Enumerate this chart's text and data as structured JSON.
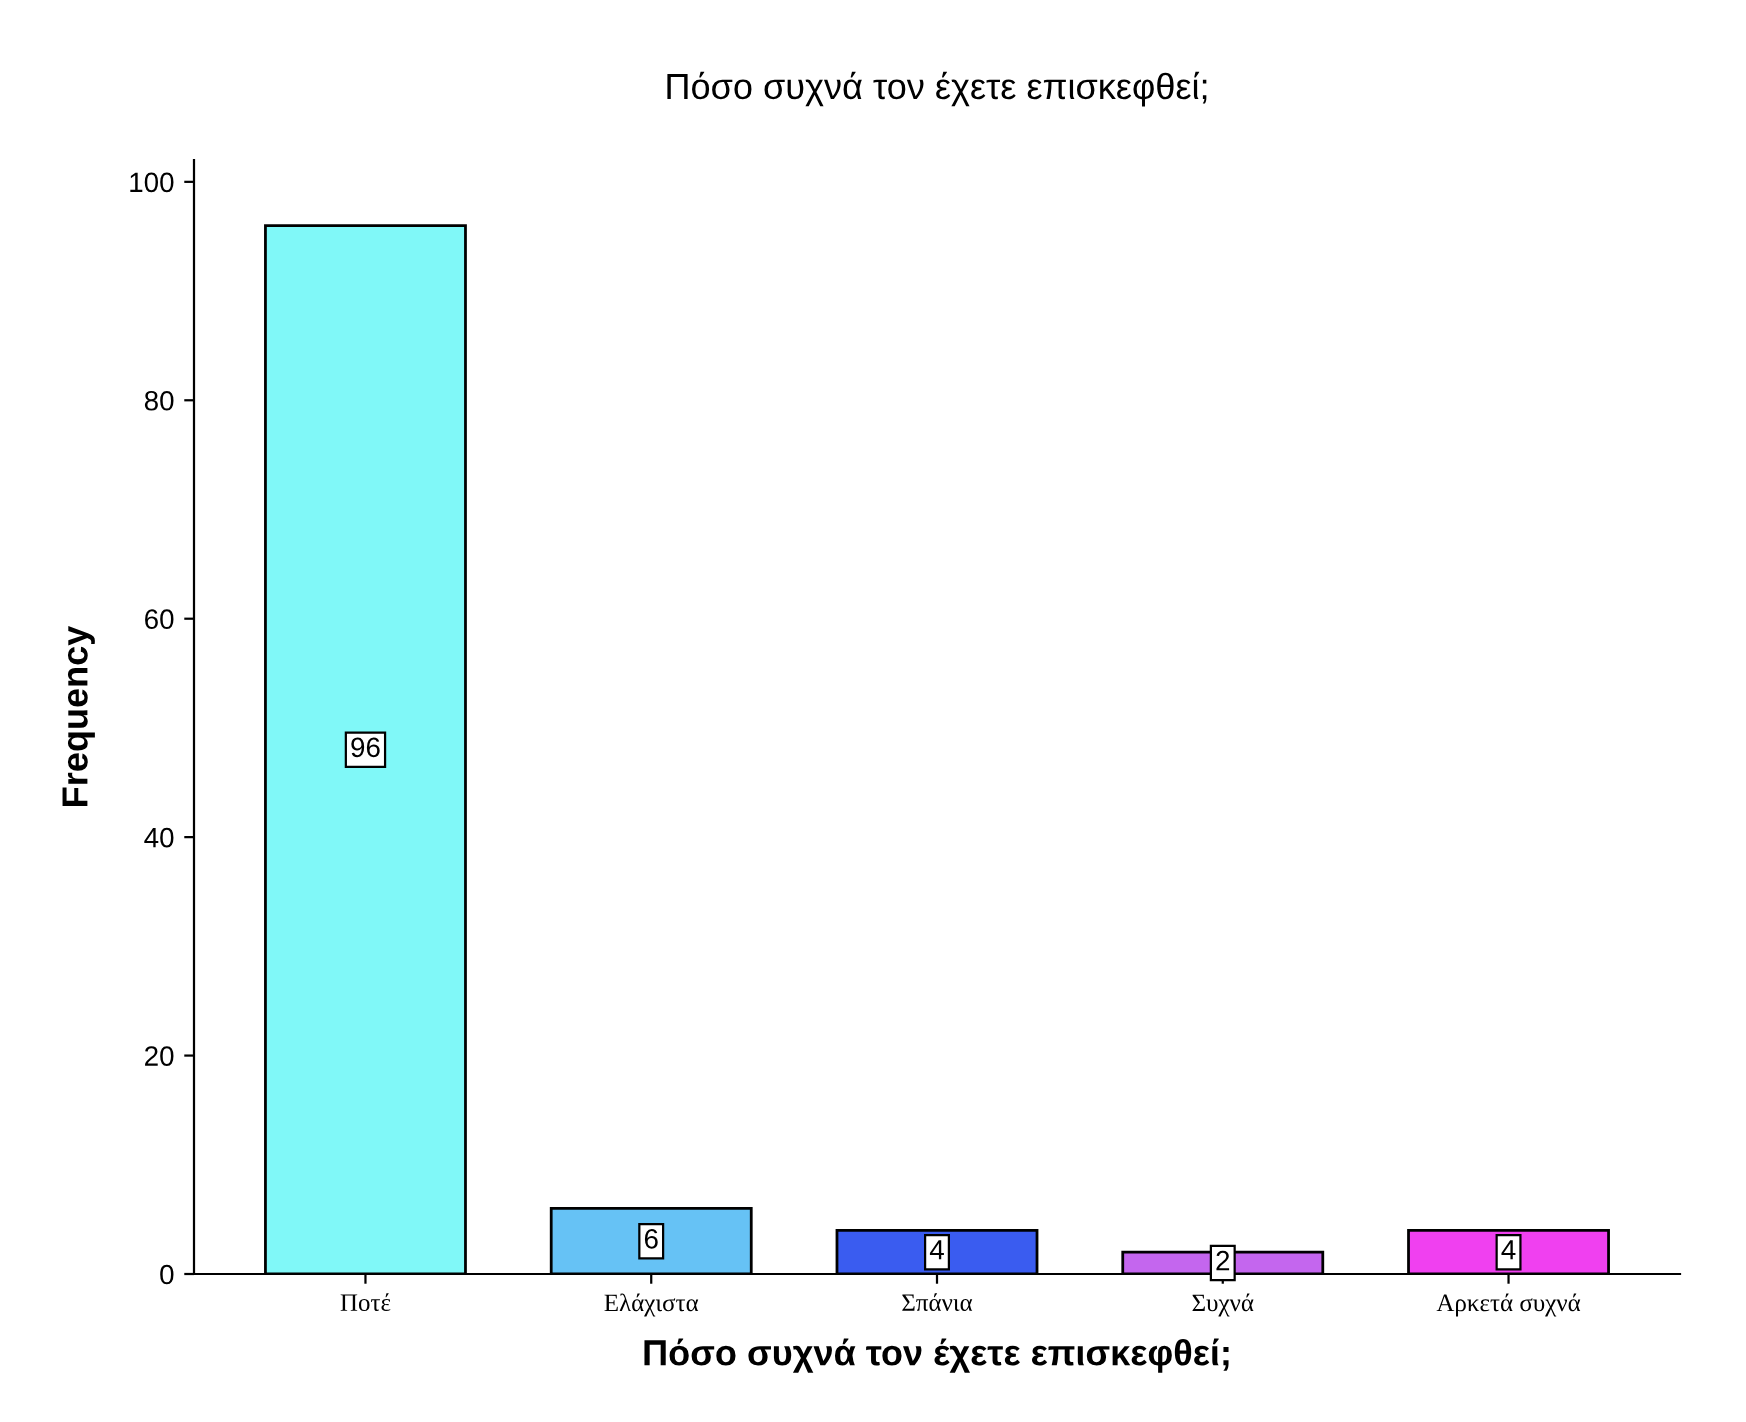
{
  "chart_data": {
    "type": "bar",
    "title": "Πόσο συχνά τον έχετε επισκεφθεί;",
    "xlabel": "Πόσο συχνά τον έχετε επισκεφθεί;",
    "ylabel": "Frequency",
    "categories": [
      "Ποτέ",
      "Ελάχιστα",
      "Σπάνια",
      "Συχνά",
      "Αρκετά συχνά"
    ],
    "values": [
      96,
      6,
      4,
      2,
      4
    ],
    "colors": [
      "#80f8f8",
      "#66c2f5",
      "#3a5cf0",
      "#c466ee",
      "#f040f0"
    ],
    "ylim": [
      0,
      102
    ],
    "yticks": [
      0,
      20,
      40,
      60,
      80,
      100
    ],
    "grid": false,
    "data_labels": true
  }
}
